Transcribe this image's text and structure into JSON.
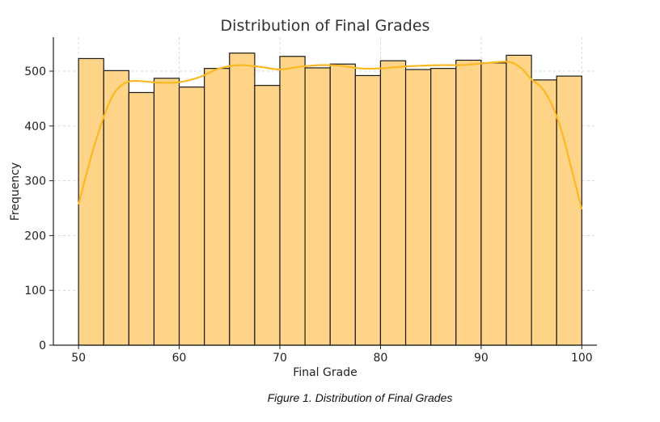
{
  "chart_data": {
    "type": "bar",
    "title": "Distribution of Final Grades",
    "xlabel": "Final Grade",
    "ylabel": "Frequency",
    "xlim": [
      47.5,
      101.5
    ],
    "ylim": [
      0,
      562
    ],
    "xticks": [
      50,
      60,
      70,
      80,
      90,
      100
    ],
    "yticks": [
      0,
      100,
      200,
      300,
      400,
      500
    ],
    "grid": true,
    "bins": [
      {
        "x0": 50.0,
        "x1": 52.5,
        "value": 523
      },
      {
        "x0": 52.5,
        "x1": 55.0,
        "value": 501
      },
      {
        "x0": 55.0,
        "x1": 57.5,
        "value": 461
      },
      {
        "x0": 57.5,
        "x1": 60.0,
        "value": 487
      },
      {
        "x0": 60.0,
        "x1": 62.5,
        "value": 471
      },
      {
        "x0": 62.5,
        "x1": 65.0,
        "value": 505
      },
      {
        "x0": 65.0,
        "x1": 67.5,
        "value": 533
      },
      {
        "x0": 67.5,
        "x1": 70.0,
        "value": 474
      },
      {
        "x0": 70.0,
        "x1": 72.5,
        "value": 527
      },
      {
        "x0": 72.5,
        "x1": 75.0,
        "value": 506
      },
      {
        "x0": 75.0,
        "x1": 77.5,
        "value": 513
      },
      {
        "x0": 77.5,
        "x1": 80.0,
        "value": 492
      },
      {
        "x0": 80.0,
        "x1": 82.5,
        "value": 519
      },
      {
        "x0": 82.5,
        "x1": 85.0,
        "value": 503
      },
      {
        "x0": 85.0,
        "x1": 87.5,
        "value": 505
      },
      {
        "x0": 87.5,
        "x1": 90.0,
        "value": 520
      },
      {
        "x0": 90.0,
        "x1": 92.5,
        "value": 515
      },
      {
        "x0": 92.5,
        "x1": 95.0,
        "value": 529
      },
      {
        "x0": 95.0,
        "x1": 97.5,
        "value": 484
      },
      {
        "x0": 97.5,
        "x1": 100.0,
        "value": 491
      }
    ],
    "kde": {
      "x": [
        50,
        51.5,
        53,
        54,
        55,
        56,
        58,
        60,
        62,
        64,
        66,
        68,
        70,
        72,
        74,
        76,
        78,
        80,
        82,
        84,
        86,
        88,
        90,
        92,
        93,
        94,
        95,
        96,
        97,
        98,
        99,
        100
      ],
      "y": [
        257,
        360,
        440,
        470,
        481,
        482,
        479,
        480,
        489,
        505,
        511,
        508,
        503,
        508,
        511,
        510,
        505,
        505,
        508,
        510,
        511,
        511,
        514,
        517,
        516,
        505,
        485,
        470,
        440,
        390,
        320,
        248
      ]
    },
    "colors": {
      "bar_fill": "#fed588",
      "bar_edge": "#1a1a1a",
      "kde_line": "#fab822",
      "grid": "#cfcfcf",
      "axis": "#222222"
    }
  },
  "caption": "Figure 1. Distribution of Final Grades"
}
